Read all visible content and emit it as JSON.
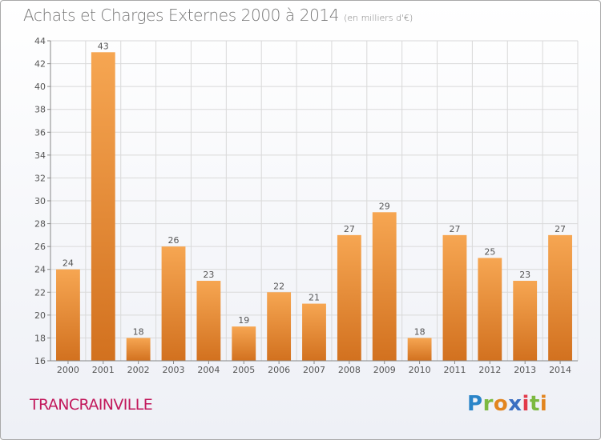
{
  "header": {
    "title": "Achats et Charges Externes 2000 à 2014",
    "unit": "(en milliers d'€)"
  },
  "footer": {
    "commune": "TRANCRAINVILLE",
    "logo_letters": [
      "P",
      "r",
      "o",
      "x",
      "i",
      "t",
      "i"
    ],
    "logo_colors": [
      "#2a84c8",
      "#7cb940",
      "#e2851f",
      "#3a6ec2",
      "#e23a4a",
      "#7cb940",
      "#e2851f"
    ]
  },
  "chart_data": {
    "type": "bar",
    "categories": [
      "2000",
      "2001",
      "2002",
      "2003",
      "2004",
      "2005",
      "2006",
      "2007",
      "2008",
      "2009",
      "2010",
      "2011",
      "2012",
      "2013",
      "2014"
    ],
    "values": [
      24,
      43,
      18,
      26,
      23,
      19,
      22,
      21,
      27,
      29,
      18,
      27,
      25,
      23,
      27
    ],
    "ylim": [
      16,
      44
    ],
    "yticks": [
      16,
      18,
      20,
      22,
      24,
      26,
      28,
      30,
      32,
      34,
      36,
      38,
      40,
      42,
      44
    ],
    "grid": true,
    "bar_color_light": "#f6a652",
    "bar_color_dark": "#d2711f",
    "grid_color": "#d9d9d9",
    "text_color": "#555555"
  }
}
